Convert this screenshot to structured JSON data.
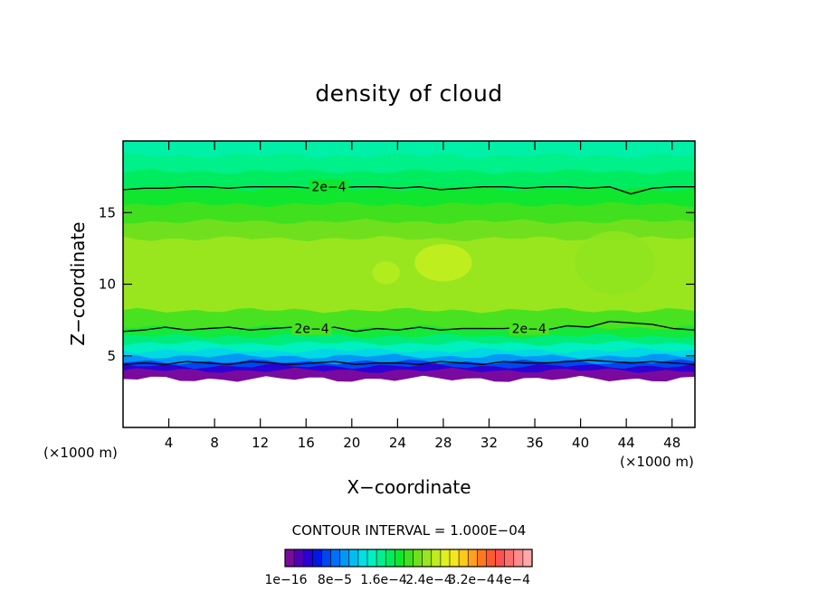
{
  "chart_data": {
    "type": "heatmap",
    "title": "density of cloud",
    "xlabel": "X−coordinate",
    "ylabel": "Z−coordinate",
    "x_unit": "(×1000 m)",
    "y_unit": "(×1000 m)",
    "xlim": [
      0,
      50
    ],
    "ylim": [
      0,
      20
    ],
    "x_ticks": [
      4,
      8,
      12,
      16,
      20,
      24,
      28,
      32,
      36,
      40,
      44,
      48
    ],
    "y_ticks": [
      5,
      10,
      15
    ],
    "x_tick_labels": [
      "4",
      "8",
      "12",
      "16",
      "20",
      "24",
      "28",
      "32",
      "36",
      "40",
      "44",
      "48"
    ],
    "y_tick_labels": [
      "5",
      "10",
      "15"
    ],
    "contour_interval_text": "CONTOUR INTERVAL = 1.000E−04",
    "colorbar_labels": [
      "1e−16",
      "8e−5",
      "1.6e−4",
      "2.4e−4",
      "3.2e−4",
      "4e−4"
    ],
    "colorbar_colors": [
      "#7a0a9e",
      "#5100b8",
      "#2a00d4",
      "#0018e6",
      "#0046f0",
      "#0070f5",
      "#0098f5",
      "#00bff0",
      "#00e0e6",
      "#00f0c0",
      "#00f090",
      "#00ec60",
      "#10e62e",
      "#40e01e",
      "#70e01e",
      "#9ae61e",
      "#c0ec1e",
      "#e0f01e",
      "#f5e61e",
      "#ffc81e",
      "#ffa01e",
      "#ff781e",
      "#ff5a2e",
      "#ff5050",
      "#ff6e6e",
      "#ff8c8c",
      "#ffa8a8"
    ],
    "contour_label": "2e−4",
    "contour_lines": [
      {
        "level": "2e−4",
        "z": [
          16.6,
          16.7,
          16.7,
          16.8,
          16.8,
          16.7,
          16.8,
          16.8,
          16.8,
          16.7,
          16.7,
          16.8,
          16.8,
          16.7,
          16.8,
          16.6,
          16.7,
          16.8,
          16.8,
          16.7,
          16.8,
          16.8,
          16.7,
          16.8,
          16.3,
          16.7,
          16.8,
          16.8
        ]
      },
      {
        "level": "2e−4",
        "z": [
          6.7,
          6.8,
          7.0,
          6.8,
          6.9,
          7.0,
          6.8,
          6.9,
          7.0,
          6.8,
          7.0,
          6.7,
          6.9,
          6.8,
          7.0,
          6.8,
          6.9,
          6.9,
          6.9,
          7.0,
          6.8,
          7.1,
          7.0,
          7.4,
          7.3,
          7.2,
          6.9,
          6.8
        ]
      },
      {
        "level": "",
        "z": [
          4.4,
          4.5,
          4.4,
          4.6,
          4.5,
          4.4,
          4.6,
          4.5,
          4.4,
          4.5,
          4.6,
          4.4,
          4.5,
          4.5,
          4.4,
          4.6,
          4.5,
          4.4,
          4.6,
          4.5,
          4.5,
          4.6,
          4.7,
          4.6,
          4.5,
          4.6,
          4.5,
          4.4
        ]
      }
    ],
    "contour_x": [
      0,
      1.85,
      3.7,
      5.55,
      7.4,
      9.25,
      11.1,
      12.95,
      14.8,
      16.65,
      18.5,
      20.35,
      22.2,
      24.05,
      25.9,
      27.75,
      29.6,
      31.45,
      33.3,
      35.15,
      37,
      38.85,
      40.7,
      42.55,
      44.4,
      46.25,
      48.1,
      50
    ],
    "field_bands": [
      {
        "z0": 3.4,
        "z1": 4.0,
        "color": "#7a0a9e"
      },
      {
        "z0": 4.0,
        "z1": 4.3,
        "color": "#2a00d4"
      },
      {
        "z0": 4.3,
        "z1": 4.6,
        "color": "#0046f0"
      },
      {
        "z0": 4.6,
        "z1": 5.0,
        "color": "#0098f5"
      },
      {
        "z0": 5.0,
        "z1": 5.4,
        "color": "#00d8e6"
      },
      {
        "z0": 5.4,
        "z1": 5.9,
        "color": "#00f0c0"
      },
      {
        "z0": 5.9,
        "z1": 6.4,
        "color": "#00ec7a"
      },
      {
        "z0": 6.4,
        "z1": 7.0,
        "color": "#14e83a"
      },
      {
        "z0": 7.0,
        "z1": 8.2,
        "color": "#48e220"
      },
      {
        "z0": 8.2,
        "z1": 13.2,
        "color": "#9ae61e"
      },
      {
        "z0": 13.2,
        "z1": 14.4,
        "color": "#70e01e"
      },
      {
        "z0": 14.4,
        "z1": 15.6,
        "color": "#40e01e"
      },
      {
        "z0": 15.6,
        "z1": 16.7,
        "color": "#10e62e"
      },
      {
        "z0": 16.7,
        "z1": 17.9,
        "color": "#00ec60"
      },
      {
        "z0": 17.9,
        "z1": 19.0,
        "color": "#00f08a"
      },
      {
        "z0": 19.0,
        "z1": 20.0,
        "color": "#00f0a8"
      }
    ],
    "highlight_patches": [
      {
        "x": 28,
        "z": 11.5,
        "rx": 2.5,
        "rz": 1.3,
        "color": "#c6ef1e"
      },
      {
        "x": 23,
        "z": 10.8,
        "rx": 1.2,
        "rz": 0.8,
        "color": "#b4ec1e"
      },
      {
        "x": 43,
        "z": 11.5,
        "rx": 3.5,
        "rz": 2.2,
        "color": "#8ee41e"
      }
    ]
  }
}
